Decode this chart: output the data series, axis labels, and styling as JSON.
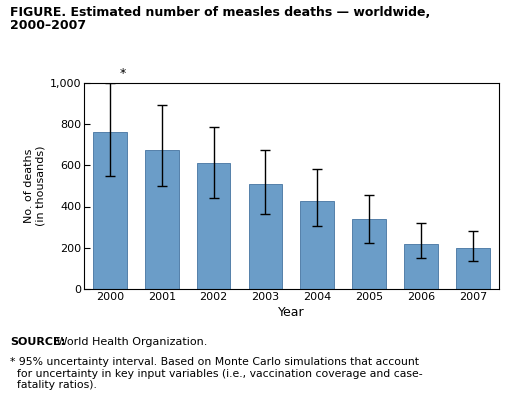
{
  "years": [
    "2000",
    "2001",
    "2002",
    "2003",
    "2004",
    "2005",
    "2006",
    "2007"
  ],
  "values": [
    760,
    675,
    610,
    510,
    425,
    340,
    220,
    200
  ],
  "err_low": [
    210,
    175,
    170,
    145,
    120,
    115,
    70,
    65
  ],
  "err_high": [
    240,
    215,
    175,
    165,
    155,
    115,
    100,
    80
  ],
  "bar_color": "#6b9dc8",
  "bar_edgecolor": "#5580aa",
  "errorbar_color": "black",
  "ylim": [
    0,
    1000
  ],
  "yticks": [
    0,
    200,
    400,
    600,
    800,
    1000
  ],
  "ytick_labels": [
    "0",
    "200",
    "400",
    "600",
    "800",
    "1,000"
  ],
  "ylabel": "No. of deaths\n(in thousands)",
  "xlabel": "Year",
  "title_line1": "FIGURE. Estimated number of measles deaths — worldwide,",
  "title_line2": "2000–2007",
  "source_bold": "SOURCE:",
  "source_normal": " World Health Organization.",
  "footnote_text": "* 95% uncertainty interval. Based on Monte Carlo simulations that account\n  for uncertainty in key input variables (i.e., vaccination coverage and case-\n  fatality ratios).",
  "asterisk_year_index": 0,
  "fig_width": 5.09,
  "fig_height": 4.13,
  "dpi": 100
}
